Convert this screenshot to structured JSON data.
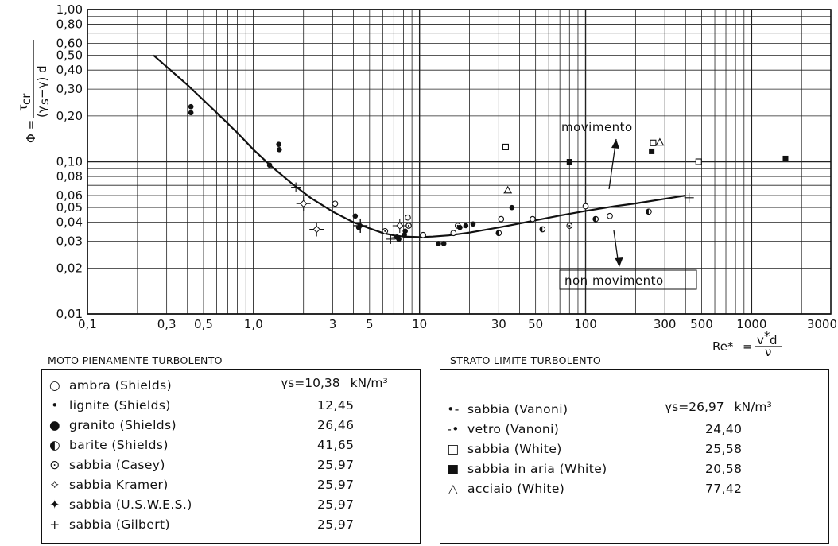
{
  "chart_data": {
    "type": "scatter",
    "xscale": "log",
    "yscale": "log",
    "xlim": [
      0.1,
      3000
    ],
    "ylim": [
      0.01,
      1.0
    ],
    "grid": true,
    "x_tick_labels": [
      {
        "v": 0.1,
        "t": "0,1"
      },
      {
        "v": 0.3,
        "t": "0,3"
      },
      {
        "v": 0.5,
        "t": "0,5"
      },
      {
        "v": 1,
        "t": "1,0"
      },
      {
        "v": 3,
        "t": "3"
      },
      {
        "v": 5,
        "t": "5"
      },
      {
        "v": 10,
        "t": "10"
      },
      {
        "v": 30,
        "t": "30"
      },
      {
        "v": 50,
        "t": "50"
      },
      {
        "v": 100,
        "t": "100"
      },
      {
        "v": 300,
        "t": "300"
      },
      {
        "v": 500,
        "t": "500"
      },
      {
        "v": 1000,
        "t": "1000"
      },
      {
        "v": 3000,
        "t": "3000"
      }
    ],
    "y_tick_labels": [
      {
        "v": 1.0,
        "t": "1,00"
      },
      {
        "v": 0.8,
        "t": "0,80"
      },
      {
        "v": 0.6,
        "t": "0,60"
      },
      {
        "v": 0.5,
        "t": "0,50"
      },
      {
        "v": 0.4,
        "t": "0,40"
      },
      {
        "v": 0.3,
        "t": "0,30"
      },
      {
        "v": 0.2,
        "t": "0,20"
      },
      {
        "v": 0.1,
        "t": "0,10"
      },
      {
        "v": 0.08,
        "t": "0,08"
      },
      {
        "v": 0.06,
        "t": "0,06"
      },
      {
        "v": 0.05,
        "t": "0,05"
      },
      {
        "v": 0.04,
        "t": "0,04"
      },
      {
        "v": 0.03,
        "t": "0,03"
      },
      {
        "v": 0.02,
        "t": "0,02"
      },
      {
        "v": 0.01,
        "t": "0,01"
      }
    ],
    "ylabel": "Φ = τcr / (γs − γ) d",
    "xlabel": "Re* = v* d / ν",
    "annotations": [
      "movimento",
      "non movimento"
    ],
    "curve": {
      "x": [
        0.25,
        0.4,
        0.6,
        0.8,
        1.0,
        1.3,
        1.7,
        2.2,
        3,
        4,
        5,
        6,
        7,
        8,
        10,
        12,
        15,
        20,
        30,
        40,
        50,
        70,
        100,
        150,
        200,
        300,
        400
      ],
      "y": [
        0.5,
        0.32,
        0.21,
        0.155,
        0.12,
        0.092,
        0.072,
        0.058,
        0.047,
        0.04,
        0.0365,
        0.034,
        0.0328,
        0.0322,
        0.032,
        0.0322,
        0.0328,
        0.0342,
        0.037,
        0.0393,
        0.0412,
        0.0443,
        0.0475,
        0.051,
        0.0532,
        0.057,
        0.06
      ]
    },
    "series": [
      {
        "name": "ambra (Shields)",
        "marker": "open-circle",
        "x": [
          3.1,
          8.5,
          10.5,
          16,
          31,
          48,
          100,
          140
        ],
        "y": [
          0.053,
          0.043,
          0.033,
          0.034,
          0.042,
          0.042,
          0.051,
          0.044
        ]
      },
      {
        "name": "lignite (Shields)",
        "marker": "dot",
        "x": [
          0.42,
          0.42,
          1.25,
          1.42,
          1.43,
          4.1,
          8.2,
          13,
          14,
          19,
          36
        ],
        "y": [
          0.23,
          0.21,
          0.095,
          0.13,
          0.12,
          0.044,
          0.035,
          0.029,
          0.029,
          0.038,
          0.05
        ]
      },
      {
        "name": "granito (Shields)",
        "marker": "dot",
        "x": [
          4.3,
          7.5,
          8.1,
          21
        ],
        "y": [
          0.037,
          0.031,
          0.033,
          0.039
        ]
      },
      {
        "name": "barite (Shields)",
        "marker": "half-circle",
        "x": [
          30,
          55,
          115,
          240
        ],
        "y": [
          0.034,
          0.036,
          0.042,
          0.047
        ]
      },
      {
        "name": "sabbia (Casey)",
        "marker": "circle-dot",
        "x": [
          6.2,
          8.6,
          17,
          80
        ],
        "y": [
          0.035,
          0.038,
          0.038,
          0.038
        ]
      },
      {
        "name": "sabbia Kramer)",
        "marker": "open-diamond-cross",
        "x": [
          2.0,
          2.4,
          7.6
        ],
        "y": [
          0.053,
          0.036,
          0.038
        ]
      },
      {
        "name": "sabbia (U.S.W.E.S.)",
        "marker": "filled-diamond-cross",
        "x": [
          4.4
        ],
        "y": [
          0.038
        ]
      },
      {
        "name": "sabbia (Gilbert)",
        "marker": "plus",
        "x": [
          6.7,
          1.8,
          420
        ],
        "y": [
          0.031,
          0.068,
          0.058
        ]
      },
      {
        "name": "sabbia (Vanoni)",
        "marker": "dot-tail-left",
        "x": [
          17.5
        ],
        "y": [
          0.037
        ]
      },
      {
        "name": "vetro (Vanoni)",
        "marker": "dot-tail-right",
        "x": [
          7.3
        ],
        "y": [
          0.032
        ]
      },
      {
        "name": "sabbia (White)",
        "marker": "open-square",
        "x": [
          33,
          255,
          480
        ],
        "y": [
          0.125,
          0.133,
          0.1
        ]
      },
      {
        "name": "sabbia in aria (White)",
        "marker": "filled-square",
        "x": [
          80,
          250,
          1600
        ],
        "y": [
          0.1,
          0.117,
          0.105
        ]
      },
      {
        "name": "acciaio (White)",
        "marker": "open-triangle",
        "x": [
          34,
          280
        ],
        "y": [
          0.065,
          0.134
        ]
      }
    ]
  },
  "legend_left": {
    "title": "MOTO PIENAMENTE TURBOLENTO",
    "gamma_prefix": "γs",
    "gamma_value": "=10,38",
    "unit": "kN/m³",
    "rows": [
      {
        "sym": "○",
        "label": "ambra (Shields)",
        "value": ""
      },
      {
        "sym": "•",
        "label": "lignite (Shields)",
        "value": "12,45"
      },
      {
        "sym": "●",
        "label": "granito (Shields)",
        "value": "26,46"
      },
      {
        "sym": "◐",
        "label": "barite (Shields)",
        "value": "41,65"
      },
      {
        "sym": "⊙",
        "label": "sabbia (Casey)",
        "value": "25,97"
      },
      {
        "sym": "⟡",
        "label": "sabbia Kramer)",
        "value": "25,97"
      },
      {
        "sym": "✦",
        "label": "sabbia (U.S.W.E.S.)",
        "value": "25,97"
      },
      {
        "sym": "+",
        "label": "sabbia (Gilbert)",
        "value": "25,97"
      }
    ]
  },
  "legend_right": {
    "title": "STRATO LIMITE TURBOLENTO",
    "gamma_prefix": "γs",
    "gamma_value": "=26,97",
    "unit": "kN/m³",
    "rows": [
      {
        "sym": "•-",
        "label": "sabbia (Vanoni)",
        "value": ""
      },
      {
        "sym": "-•",
        "label": "vetro (Vanoni)",
        "value": "24,40"
      },
      {
        "sym": "□",
        "label": "sabbia (White)",
        "value": "25,58"
      },
      {
        "sym": "■",
        "label": "sabbia in aria (White)",
        "value": "20,58"
      },
      {
        "sym": "△",
        "label": "acciaio (White)",
        "value": "77,42"
      }
    ]
  }
}
